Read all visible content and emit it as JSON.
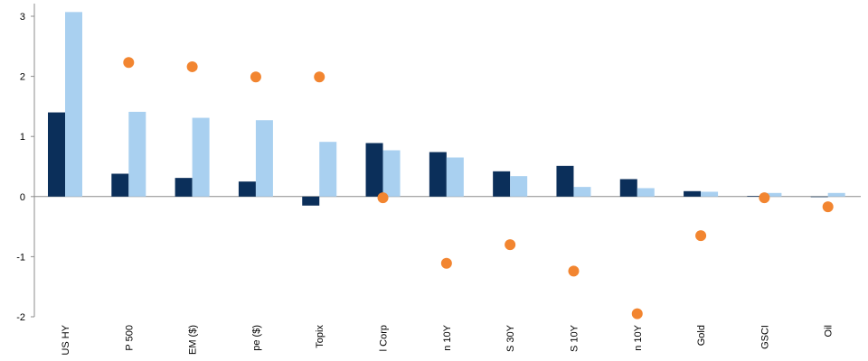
{
  "chart_data": {
    "type": "bar",
    "categories": [
      "US HY",
      "P 500",
      "EM ($)",
      "pe ($)",
      "Topix",
      "l Corp",
      "n 10Y",
      "S 30Y",
      "S 10Y",
      "n 10Y",
      "Gold",
      "GSCI",
      "Oil"
    ],
    "series": [
      {
        "kind": "bar",
        "color": "#0b2f5a",
        "values": [
          1.4,
          0.38,
          0.31,
          0.25,
          -0.15,
          0.89,
          0.74,
          0.42,
          0.51,
          0.29,
          0.09,
          0.01,
          0.0
        ]
      },
      {
        "kind": "bar",
        "color": "#a9d0f0",
        "values": [
          3.07,
          1.41,
          1.31,
          1.27,
          0.91,
          0.77,
          0.65,
          0.34,
          0.16,
          0.14,
          0.08,
          0.06,
          0.06
        ]
      },
      {
        "kind": "dot",
        "color": "#f28530",
        "values": [
          null,
          2.23,
          2.16,
          1.99,
          1.99,
          -0.02,
          -1.11,
          -0.8,
          -1.24,
          -1.95,
          -0.65,
          -0.02,
          -0.17
        ]
      }
    ],
    "ylim": [
      -2,
      3
    ],
    "yticks": [
      "3",
      "2",
      "1",
      "0",
      "-1",
      "-2"
    ],
    "title": "",
    "xlabel": "",
    "ylabel": ""
  }
}
